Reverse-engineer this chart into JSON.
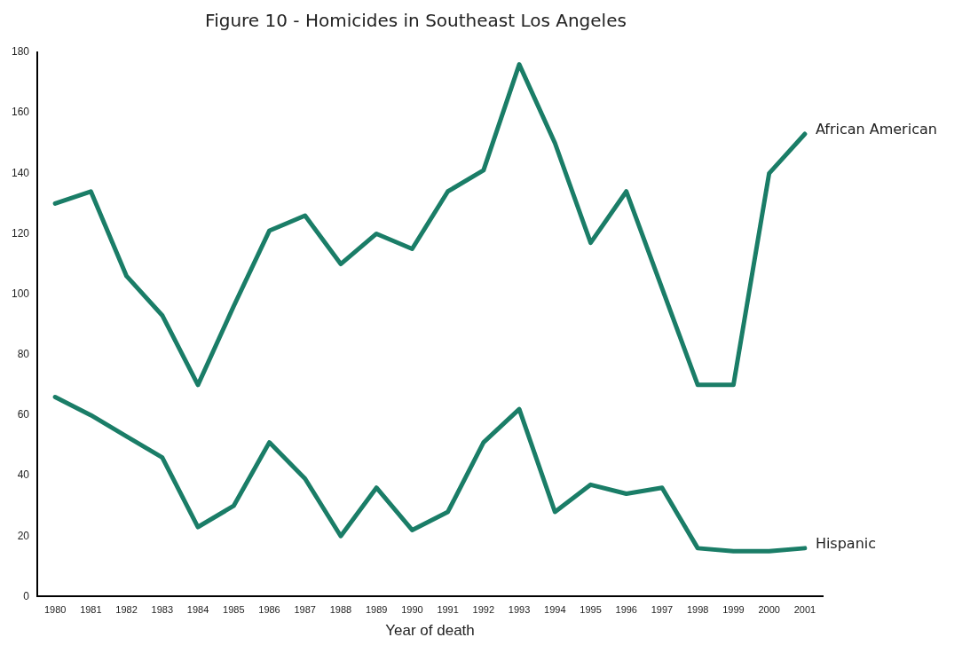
{
  "chart_data": {
    "type": "line",
    "title": "Figure 10 - Homicides in Southeast Los Angeles",
    "xlabel": "Year of death",
    "categories": [
      "1980",
      "1981",
      "1982",
      "1983",
      "1984",
      "1985",
      "1986",
      "1987",
      "1988",
      "1989",
      "1990",
      "1991",
      "1992",
      "1993",
      "1994",
      "1995",
      "1996",
      "1997",
      "1998",
      "1999",
      "2000",
      "2001"
    ],
    "series": [
      {
        "name": "African American",
        "color": "#1a7d67",
        "values": [
          130,
          134,
          106,
          93,
          70,
          96,
          121,
          126,
          110,
          120,
          115,
          134,
          141,
          176,
          150,
          117,
          134,
          102,
          70,
          70,
          140,
          153
        ]
      },
      {
        "name": "Hispanic",
        "color": "#1a7d67",
        "values": [
          66,
          60,
          53,
          46,
          23,
          30,
          51,
          39,
          20,
          36,
          22,
          28,
          51,
          62,
          28,
          37,
          34,
          36,
          16,
          15,
          15,
          16
        ]
      }
    ],
    "ylim": [
      0,
      180
    ],
    "yticks": [
      0,
      20,
      40,
      60,
      80,
      100,
      120,
      140,
      160,
      180
    ],
    "grid": false,
    "legend": false,
    "marker": "none",
    "line_style": "solid"
  }
}
